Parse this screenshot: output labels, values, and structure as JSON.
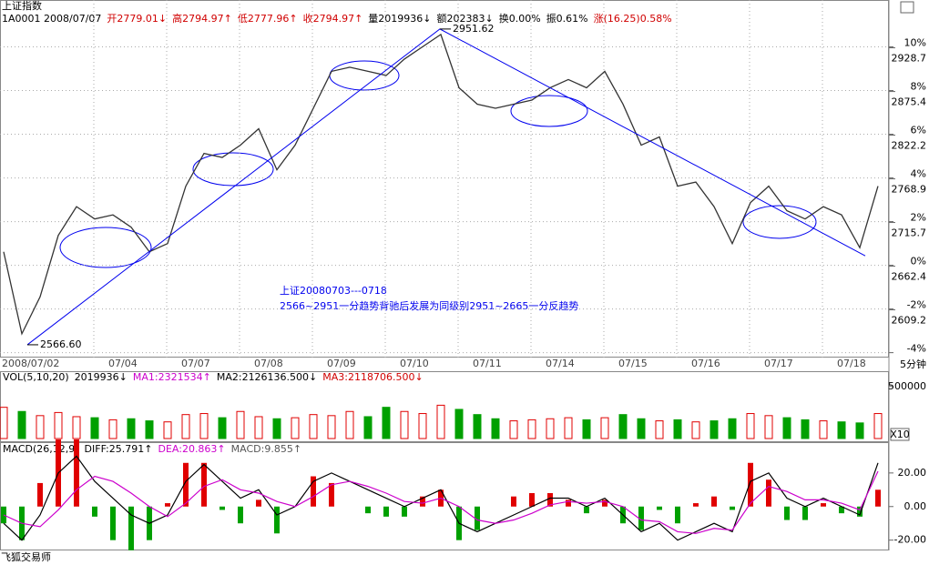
{
  "header": {
    "title": "上证指数",
    "items": [
      {
        "text": "1A0001 2008/07/07",
        "color": "#000000"
      },
      {
        "text": "开2779.01↓",
        "color": "#d00000"
      },
      {
        "text": "高2794.97↑",
        "color": "#d00000"
      },
      {
        "text": "低2777.96↑",
        "color": "#d00000"
      },
      {
        "text": "收2794.97↑",
        "color": "#d00000"
      },
      {
        "text": "量2019936↓",
        "color": "#000000"
      },
      {
        "text": "额202383↓",
        "color": "#000000"
      },
      {
        "text": "换0.00%",
        "color": "#000000"
      },
      {
        "text": "振0.61%",
        "color": "#000000"
      },
      {
        "text": "涨(16.25)0.58%",
        "color": "#d00000"
      }
    ]
  },
  "footer": "飞狐交易师",
  "chart_data": [
    {
      "type": "line",
      "color": "#333333",
      "x": [
        "2008/07/02",
        null,
        null,
        null,
        null,
        "07/04",
        null,
        null,
        null,
        "07/07",
        null,
        null,
        null,
        "07/08",
        null,
        null,
        null,
        "07/09",
        null,
        null,
        null,
        "07/10",
        null,
        null,
        null,
        "07/11",
        null,
        null,
        null,
        "07/14",
        null,
        null,
        null,
        "07/15",
        null,
        null,
        null,
        "07/16",
        null,
        null,
        null,
        "07/17",
        null,
        null,
        null,
        "07/18",
        null,
        null,
        null
      ],
      "values": [
        2680,
        2580,
        2625,
        2700,
        2735,
        2720,
        2725,
        2710,
        2680,
        2690,
        2760,
        2800,
        2795,
        2810,
        2830,
        2780,
        2810,
        2855,
        2900,
        2905,
        2900,
        2895,
        2915,
        2930,
        2945,
        2880,
        2860,
        2855,
        2860,
        2865,
        2880,
        2890,
        2880,
        2900,
        2860,
        2810,
        2820,
        2760,
        2765,
        2735,
        2690,
        2740,
        2760,
        2730,
        2720,
        2735,
        2725,
        2685,
        2760
      ],
      "trend_line": {
        "color": "#0000ee",
        "x": [
          1.3,
          23.95,
          47.3
        ],
        "values": [
          2566.6,
          2951.62,
          2675
        ],
        "value_labels": [
          "2566.60",
          "2951.62",
          null
        ]
      },
      "annotations": [
        "上证20080703---0718",
        "2566~2951一分趋势背驰后发展为同级别2951~2665一分反趋势"
      ],
      "ylim": [
        2551,
        2987
      ],
      "yticks": [
        2609.2,
        2662.4,
        2715.7,
        2768.9,
        2822.2,
        2875.4,
        2928.7
      ],
      "y2lim": [
        -4.224,
        12.146
      ],
      "y2ticks": [
        {
          "value": -4,
          "label": "-4%"
        },
        {
          "value": -2,
          "label": "-2%"
        },
        {
          "value": 0,
          "label": "0%"
        },
        {
          "value": 2,
          "label": "2%"
        },
        {
          "value": 4,
          "label": "4%"
        },
        {
          "value": 6,
          "label": "6%"
        },
        {
          "value": 8,
          "label": "8%"
        },
        {
          "value": 10,
          "label": "10%"
        }
      ],
      "grid": true,
      "interval_label": "5分钟"
    },
    {
      "type": "bar",
      "title": "VOL(5,10,20)",
      "legend_items": [
        "2019936↓",
        "MA1:2321534↑",
        "MA2:2126136.500↓",
        "MA3:2118706.500↓"
      ],
      "values": [
        300000,
        260000,
        220000,
        250000,
        210000,
        200000,
        180000,
        190000,
        170000,
        160000,
        230000,
        240000,
        200000,
        260000,
        210000,
        190000,
        200000,
        230000,
        220000,
        260000,
        210000,
        300000,
        260000,
        240000,
        320000,
        280000,
        230000,
        190000,
        170000,
        180000,
        190000,
        200000,
        180000,
        200000,
        230000,
        190000,
        170000,
        180000,
        160000,
        170000,
        190000,
        240000,
        220000,
        200000,
        180000,
        170000,
        160000,
        150000,
        240000
      ],
      "ylim": [
        0,
        638000
      ],
      "yticks": [
        500000
      ],
      "button": "X10"
    },
    {
      "type": "macd",
      "title": "MACD(26,12,9)",
      "values": [
        -10,
        -20,
        14,
        40,
        40,
        -6,
        -20,
        -26,
        -20,
        2,
        26,
        26,
        -2,
        -10,
        4,
        -16,
        0,
        18,
        14,
        0,
        -4,
        -6,
        -6,
        6,
        10,
        -20,
        -14,
        0,
        6,
        8,
        8,
        4,
        -4,
        4,
        -10,
        -14,
        -2,
        -10,
        2,
        6,
        -2,
        26,
        16,
        -8,
        -8,
        2,
        -4,
        -6,
        10
      ],
      "series": [
        {
          "name": "DIFF:25.791↑",
          "color": "#000000",
          "values": [
            -10,
            -20,
            -5,
            20,
            30,
            15,
            5,
            -5,
            -10,
            -5,
            15,
            25,
            15,
            5,
            10,
            -5,
            0,
            15,
            20,
            15,
            10,
            5,
            0,
            5,
            10,
            -10,
            -15,
            -10,
            -5,
            0,
            5,
            5,
            0,
            5,
            -5,
            -15,
            -10,
            -20,
            -15,
            -10,
            -15,
            15,
            20,
            5,
            0,
            5,
            0,
            -5,
            26
          ]
        },
        {
          "name": "DEA:20.863↑",
          "color": "#cc00cc",
          "values": [
            -5,
            -10,
            -12,
            -2,
            10,
            18,
            15,
            8,
            0,
            -6,
            2,
            12,
            16,
            10,
            8,
            3,
            0,
            6,
            13,
            15,
            12,
            8,
            3,
            2,
            5,
            0,
            -8,
            -10,
            -8,
            -4,
            1,
            3,
            2,
            3,
            0,
            -8,
            -9,
            -15,
            -16,
            -13,
            -14,
            2,
            12,
            9,
            4,
            4,
            2,
            -2,
            21
          ]
        }
      ],
      "legend_items": [
        "MACD:9.855↑"
      ],
      "ylim": [
        -25.6,
        37.8
      ],
      "yticks": [
        {
          "value": 20,
          "label": "20.00"
        },
        {
          "value": 0,
          "label": "0.00"
        },
        {
          "value": -20,
          "label": "-20.00"
        }
      ]
    }
  ]
}
